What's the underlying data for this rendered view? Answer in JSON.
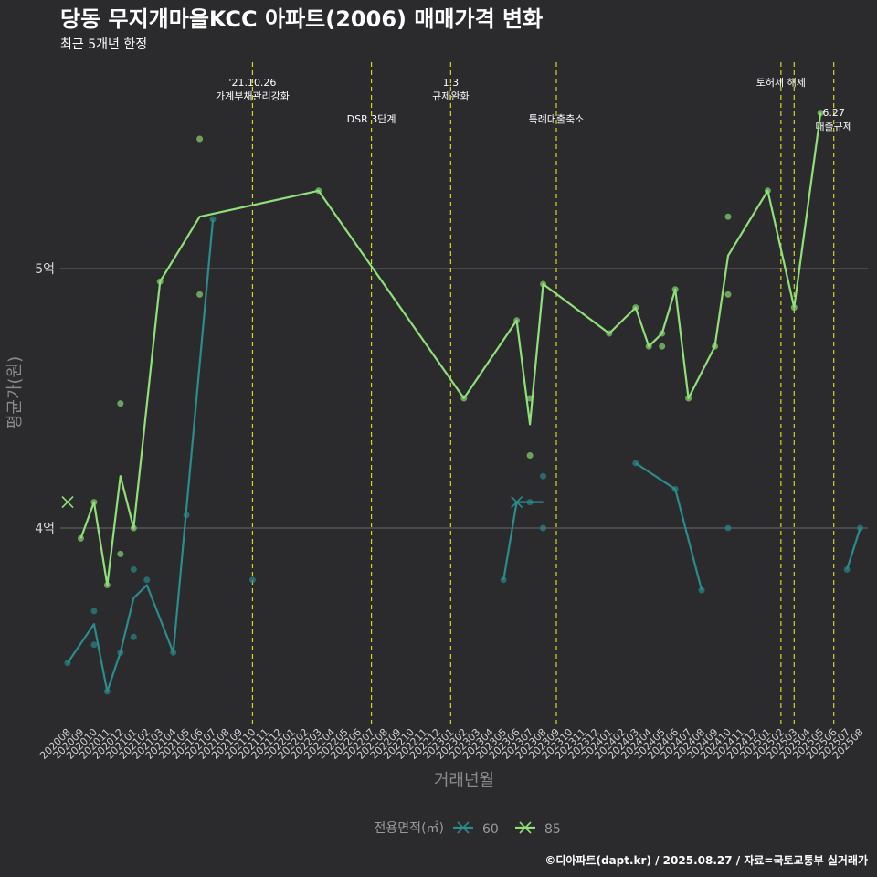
{
  "colors": {
    "background": "#2b2b2d",
    "series60": "#2a8c8c",
    "series85": "#90e07a",
    "vline": "#d4d42a",
    "grid": "#6a6a6a"
  },
  "chart_data": {
    "type": "line",
    "title": "당동 무지개마을KCC 아파트(2006) 매매가격 변화",
    "subtitle": "최근 5개년 한정",
    "xlabel": "거래년월",
    "ylabel": "평균가(원)",
    "caption": "©디아파트(dapt.kr) / 2025.08.27 / 자료=국토교통부 실거래가",
    "legend_title": "전용면적(㎡)",
    "ylim": [
      3.25,
      5.7
    ],
    "yticks": [
      {
        "value": 4,
        "label": "4억"
      },
      {
        "value": 5,
        "label": "5억"
      }
    ],
    "categories": [
      "202008",
      "202009",
      "202010",
      "202011",
      "202012",
      "202101",
      "202102",
      "202103",
      "202104",
      "202105",
      "202106",
      "202107",
      "202108",
      "202109",
      "202110",
      "202111",
      "202112",
      "202201",
      "202202",
      "202203",
      "202204",
      "202205",
      "202206",
      "202207",
      "202208",
      "202209",
      "202210",
      "202211",
      "202212",
      "202301",
      "202302",
      "202303",
      "202304",
      "202305",
      "202306",
      "202307",
      "202308",
      "202309",
      "202310",
      "202311",
      "202312",
      "202401",
      "202402",
      "202403",
      "202404",
      "202405",
      "202406",
      "202407",
      "202408",
      "202409",
      "202410",
      "202411",
      "202412",
      "202501",
      "202502",
      "202503",
      "202504",
      "202505",
      "202506",
      "202507",
      "202508"
    ],
    "series": [
      {
        "name": "60",
        "line": [
          {
            "x": "202008",
            "y": 3.48
          },
          {
            "x": "202010",
            "y": 3.63
          },
          {
            "x": "202011",
            "y": 3.37
          },
          {
            "x": "202012",
            "y": 3.52
          },
          {
            "x": "202101",
            "y": 3.73
          },
          {
            "x": "202102",
            "y": 3.78
          },
          {
            "x": "202104",
            "y": 3.52
          },
          {
            "x": "202107",
            "y": 5.19
          },
          {
            "x": "202305",
            "y": 3.8
          },
          {
            "x": "202306",
            "y": 4.1
          },
          {
            "x": "202307",
            "y": 4.1
          },
          {
            "x": "202308",
            "y": 4.1
          },
          {
            "x": "202403",
            "y": 4.25
          },
          {
            "x": "202406",
            "y": 4.15
          },
          {
            "x": "202408",
            "y": 3.76
          },
          {
            "x": "202507",
            "y": 3.84
          },
          {
            "x": "202508",
            "y": 4.0
          }
        ],
        "breaks_after": [
          "202107",
          "202308",
          "202408"
        ],
        "points": [
          {
            "x": "202008",
            "y": 3.48
          },
          {
            "x": "202010",
            "y": 3.55
          },
          {
            "x": "202010",
            "y": 3.68
          },
          {
            "x": "202011",
            "y": 3.37
          },
          {
            "x": "202012",
            "y": 3.52
          },
          {
            "x": "202101",
            "y": 3.58
          },
          {
            "x": "202101",
            "y": 3.84
          },
          {
            "x": "202102",
            "y": 3.8
          },
          {
            "x": "202104",
            "y": 3.52
          },
          {
            "x": "202105",
            "y": 4.05
          },
          {
            "x": "202107",
            "y": 5.19
          },
          {
            "x": "202110",
            "y": 3.8
          },
          {
            "x": "202305",
            "y": 3.8
          },
          {
            "x": "202307",
            "y": 4.1
          },
          {
            "x": "202308",
            "y": 4.2
          },
          {
            "x": "202308",
            "y": 4.0
          },
          {
            "x": "202403",
            "y": 4.25
          },
          {
            "x": "202406",
            "y": 4.15
          },
          {
            "x": "202408",
            "y": 3.76
          },
          {
            "x": "202410",
            "y": 4.0
          },
          {
            "x": "202507",
            "y": 3.84
          },
          {
            "x": "202508",
            "y": 4.0
          }
        ],
        "cross_markers": [
          {
            "x": "202306",
            "y": 4.1
          }
        ]
      },
      {
        "name": "85",
        "line": [
          {
            "x": "202009",
            "y": 3.96
          },
          {
            "x": "202010",
            "y": 4.1
          },
          {
            "x": "202011",
            "y": 3.78
          },
          {
            "x": "202012",
            "y": 4.2
          },
          {
            "x": "202101",
            "y": 4.0
          },
          {
            "x": "202103",
            "y": 4.95
          },
          {
            "x": "202106",
            "y": 5.2
          },
          {
            "x": "202203",
            "y": 5.3
          },
          {
            "x": "202302",
            "y": 4.5
          },
          {
            "x": "202306",
            "y": 4.8
          },
          {
            "x": "202307",
            "y": 4.4
          },
          {
            "x": "202308",
            "y": 4.94
          },
          {
            "x": "202401",
            "y": 4.75
          },
          {
            "x": "202403",
            "y": 4.85
          },
          {
            "x": "202404",
            "y": 4.7
          },
          {
            "x": "202405",
            "y": 4.75
          },
          {
            "x": "202406",
            "y": 4.92
          },
          {
            "x": "202407",
            "y": 4.5
          },
          {
            "x": "202409",
            "y": 4.7
          },
          {
            "x": "202410",
            "y": 5.05
          },
          {
            "x": "202501",
            "y": 5.3
          },
          {
            "x": "202503",
            "y": 4.85
          },
          {
            "x": "202505",
            "y": 5.6
          }
        ],
        "breaks_after": [],
        "points": [
          {
            "x": "202009",
            "y": 3.96
          },
          {
            "x": "202010",
            "y": 4.1
          },
          {
            "x": "202011",
            "y": 3.78
          },
          {
            "x": "202012",
            "y": 4.48
          },
          {
            "x": "202012",
            "y": 3.9
          },
          {
            "x": "202101",
            "y": 4.0
          },
          {
            "x": "202103",
            "y": 4.95
          },
          {
            "x": "202106",
            "y": 5.5
          },
          {
            "x": "202106",
            "y": 4.9
          },
          {
            "x": "202203",
            "y": 5.3
          },
          {
            "x": "202302",
            "y": 4.5
          },
          {
            "x": "202306",
            "y": 4.8
          },
          {
            "x": "202307",
            "y": 4.5
          },
          {
            "x": "202307",
            "y": 4.28
          },
          {
            "x": "202308",
            "y": 4.94
          },
          {
            "x": "202401",
            "y": 4.75
          },
          {
            "x": "202403",
            "y": 4.85
          },
          {
            "x": "202404",
            "y": 4.7
          },
          {
            "x": "202405",
            "y": 4.75
          },
          {
            "x": "202405",
            "y": 4.7
          },
          {
            "x": "202406",
            "y": 4.92
          },
          {
            "x": "202407",
            "y": 4.5
          },
          {
            "x": "202409",
            "y": 4.7
          },
          {
            "x": "202410",
            "y": 5.2
          },
          {
            "x": "202410",
            "y": 4.9
          },
          {
            "x": "202501",
            "y": 5.3
          },
          {
            "x": "202503",
            "y": 4.85
          },
          {
            "x": "202505",
            "y": 5.6
          }
        ],
        "cross_markers": [
          {
            "x": "202008",
            "y": 4.1
          }
        ]
      }
    ],
    "vlines": [
      {
        "x": "202110",
        "lines": [
          "'21.10.26",
          "가계부채관리강화"
        ],
        "row": 0
      },
      {
        "x": "202207",
        "lines": [
          "DSR 3단계"
        ],
        "row": 1
      },
      {
        "x": "202301",
        "lines": [
          "1.3",
          "규제완화"
        ],
        "row": 0
      },
      {
        "x": "202309",
        "lines": [
          "특례대출축소"
        ],
        "row": 1
      },
      {
        "x": "202502",
        "lines": [
          "토허제 해제"
        ],
        "row": 0
      },
      {
        "x": "202503",
        "lines": [],
        "row": 0
      },
      {
        "x": "202506",
        "lines": [
          "6.27",
          "대출규제"
        ],
        "row": 2
      }
    ]
  }
}
